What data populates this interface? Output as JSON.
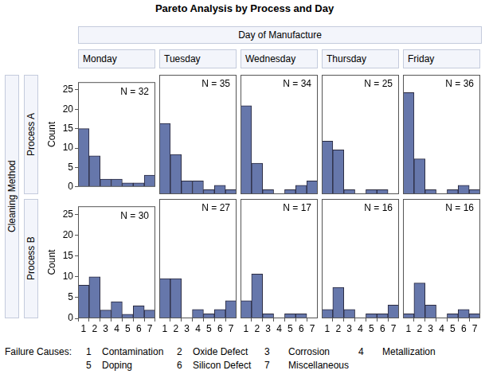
{
  "title": "Pareto Analysis by Process and Day",
  "column_header": "Day of Manufacture",
  "row_header": "Cleaning Method",
  "columns": [
    "Monday",
    "Tuesday",
    "Wednesday",
    "Thursday",
    "Friday"
  ],
  "rows": [
    "Process A",
    "Process B"
  ],
  "failure_causes": {
    "title": "Failure Causes:",
    "items": [
      {
        "code": 1,
        "label": "Contamination"
      },
      {
        "code": 2,
        "label": "Oxide Defect"
      },
      {
        "code": 3,
        "label": "Corrosion"
      },
      {
        "code": 4,
        "label": "Metallization"
      },
      {
        "code": 5,
        "label": "Doping"
      },
      {
        "code": 6,
        "label": "Silicon Defect"
      },
      {
        "code": 7,
        "label": "Miscellaneous"
      }
    ]
  },
  "chart_data": [
    {
      "type": "bar",
      "annotation": "N = 32",
      "y_label": "Count",
      "tick_labels": "y",
      "categories": [
        1,
        2,
        3,
        4,
        5,
        6,
        7
      ],
      "values": [
        15,
        8,
        2,
        2,
        1,
        1,
        3
      ],
      "color": "#6677ab",
      "ylim": [
        0,
        27
      ],
      "yticks": [
        0,
        5,
        10,
        15,
        20,
        25
      ],
      "grid": false
    },
    {
      "type": "bar",
      "annotation": "N = 35",
      "tick_labels": false,
      "categories": [
        1,
        2,
        3,
        4,
        5,
        6,
        7
      ],
      "values": [
        16,
        9,
        3,
        3,
        1,
        2,
        1
      ],
      "color": "#6677ab",
      "ylim": [
        0,
        27
      ],
      "yticks": [
        0,
        5,
        10,
        15,
        20,
        25
      ],
      "grid": false
    },
    {
      "type": "bar",
      "annotation": "N = 34",
      "tick_labels": false,
      "categories": [
        1,
        2,
        3,
        4,
        5,
        6,
        7
      ],
      "values": [
        20,
        7,
        1,
        0,
        1,
        2,
        3
      ],
      "color": "#6677ab",
      "ylim": [
        0,
        27
      ],
      "yticks": [
        0,
        5,
        10,
        15,
        20,
        25
      ],
      "grid": false
    },
    {
      "type": "bar",
      "annotation": "N = 25",
      "tick_labels": false,
      "categories": [
        1,
        2,
        3,
        4,
        5,
        6,
        7
      ],
      "values": [
        12,
        10,
        1,
        0,
        1,
        1,
        0
      ],
      "color": "#6677ab",
      "ylim": [
        0,
        27
      ],
      "yticks": [
        0,
        5,
        10,
        15,
        20,
        25
      ],
      "grid": false
    },
    {
      "type": "bar",
      "annotation": "N = 36",
      "tick_labels": false,
      "categories": [
        1,
        2,
        3,
        4,
        5,
        6,
        7
      ],
      "values": [
        23,
        8,
        1,
        0,
        1,
        2,
        1
      ],
      "color": "#6677ab",
      "ylim": [
        0,
        27
      ],
      "yticks": [
        0,
        5,
        10,
        15,
        20,
        25
      ],
      "grid": false
    },
    {
      "type": "bar",
      "annotation": "N = 30",
      "y_label": "Count",
      "tick_labels": true,
      "categories": [
        1,
        2,
        3,
        4,
        5,
        6,
        7
      ],
      "values": [
        8,
        10,
        2,
        4,
        1,
        3,
        2
      ],
      "color": "#6677ab",
      "ylim": [
        0,
        27
      ],
      "yticks": [
        0,
        5,
        10,
        15,
        20,
        25
      ],
      "grid": false
    },
    {
      "type": "bar",
      "annotation": "N = 27",
      "tick_labels": "x",
      "categories": [
        1,
        2,
        3,
        4,
        5,
        6,
        7
      ],
      "values": [
        9,
        9,
        0,
        2,
        1,
        2,
        4
      ],
      "color": "#6677ab",
      "ylim": [
        0,
        27
      ],
      "yticks": [
        0,
        5,
        10,
        15,
        20,
        25
      ],
      "grid": false
    },
    {
      "type": "bar",
      "annotation": "N = 17",
      "tick_labels": "x",
      "categories": [
        1,
        2,
        3,
        4,
        5,
        6,
        7
      ],
      "values": [
        4,
        10,
        1,
        0,
        1,
        1,
        0
      ],
      "color": "#6677ab",
      "ylim": [
        0,
        27
      ],
      "yticks": [
        0,
        5,
        10,
        15,
        20,
        25
      ],
      "grid": false
    },
    {
      "type": "bar",
      "annotation": "N = 16",
      "tick_labels": "x",
      "categories": [
        1,
        2,
        3,
        4,
        5,
        6,
        7
      ],
      "values": [
        2,
        7,
        2,
        0,
        1,
        1,
        3
      ],
      "color": "#6677ab",
      "ylim": [
        0,
        27
      ],
      "yticks": [
        0,
        5,
        10,
        15,
        20,
        25
      ],
      "grid": false
    },
    {
      "type": "bar",
      "annotation": "N = 16",
      "tick_labels": "x",
      "categories": [
        1,
        2,
        3,
        4,
        5,
        6,
        7
      ],
      "values": [
        1,
        8,
        3,
        0,
        1,
        2,
        1
      ],
      "color": "#6677ab",
      "ylim": [
        0,
        27
      ],
      "yticks": [
        0,
        5,
        10,
        15,
        20,
        25
      ],
      "grid": false
    }
  ]
}
